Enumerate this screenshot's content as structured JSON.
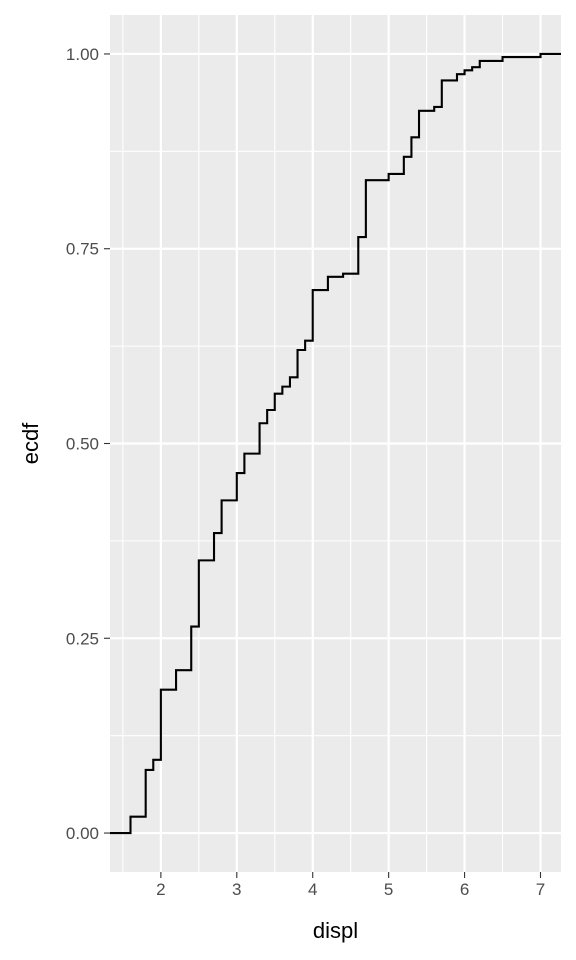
{
  "chart_data": {
    "type": "line",
    "step": true,
    "xlabel": "displ",
    "ylabel": "ecdf",
    "xlim": [
      1.33,
      7.27
    ],
    "ylim": [
      -0.05,
      1.05
    ],
    "x_ticks": [
      2,
      3,
      4,
      5,
      6,
      7
    ],
    "x_tick_labels": [
      "2",
      "3",
      "4",
      "5",
      "6",
      "7"
    ],
    "y_ticks": [
      0,
      0.25,
      0.5,
      0.75,
      1
    ],
    "y_tick_labels": [
      "0.00",
      "0.25",
      "0.50",
      "0.75",
      "1.00"
    ],
    "grid": true,
    "colors": {
      "panel": "#ebebeb",
      "grid": "#ffffff",
      "line": "#000000"
    },
    "series": [
      {
        "x": [
          1.6,
          1.8,
          1.9,
          2.0,
          2.2,
          2.4,
          2.5,
          2.7,
          2.8,
          3.0,
          3.1,
          3.3,
          3.4,
          3.5,
          3.6,
          3.7,
          3.8,
          3.9,
          4.0,
          4.2,
          4.4,
          4.6,
          4.7,
          5.0,
          5.2,
          5.3,
          5.4,
          5.6,
          5.7,
          5.9,
          6.0,
          6.1,
          6.2,
          6.5,
          7.0
        ],
        "y": [
          0.021,
          0.081,
          0.094,
          0.184,
          0.209,
          0.265,
          0.35,
          0.385,
          0.427,
          0.462,
          0.487,
          0.526,
          0.543,
          0.564,
          0.573,
          0.585,
          0.62,
          0.632,
          0.697,
          0.714,
          0.718,
          0.765,
          0.838,
          0.846,
          0.868,
          0.893,
          0.927,
          0.932,
          0.966,
          0.974,
          0.979,
          0.983,
          0.991,
          0.996,
          1.0
        ]
      }
    ]
  }
}
